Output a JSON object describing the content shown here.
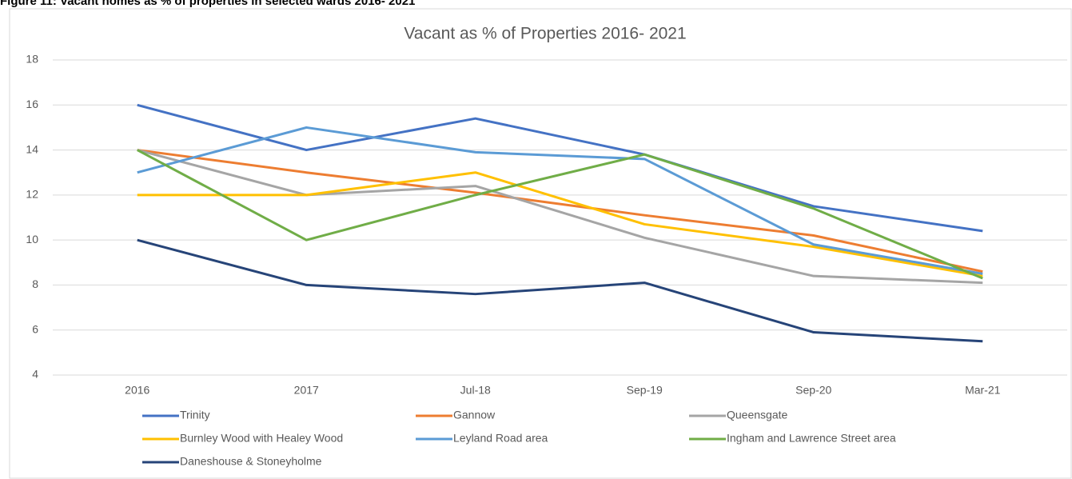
{
  "caption": "Figure 11: Vacant homes as % of properties in selected wards 2016- 2021",
  "chart_data": {
    "type": "line",
    "title": "Vacant as % of Properties 2016- 2021",
    "categories": [
      "2016",
      "2017",
      "Jul-18",
      "Sep-19",
      "Sep-20",
      "Mar-21"
    ],
    "ylim": [
      4,
      18
    ],
    "yticks": [
      4,
      6,
      8,
      10,
      12,
      14,
      16,
      18
    ],
    "grid": true,
    "legend": "bottom",
    "series": [
      {
        "name": "Trinity",
        "color": "#4472c4",
        "values": [
          16,
          14,
          15.4,
          13.8,
          11.5,
          10.4
        ]
      },
      {
        "name": "Gannow",
        "color": "#ed7d31",
        "values": [
          14,
          13,
          12.1,
          11.1,
          10.2,
          8.6
        ]
      },
      {
        "name": "Queensgate",
        "color": "#a5a5a5",
        "values": [
          14,
          12,
          12.4,
          10.1,
          8.4,
          8.1
        ]
      },
      {
        "name": "Burnley Wood with Healey Wood",
        "color": "#ffc000",
        "values": [
          12,
          12,
          13,
          10.7,
          9.7,
          8.4
        ]
      },
      {
        "name": "Leyland Road area",
        "color": "#5b9bd5",
        "values": [
          13,
          15,
          13.9,
          13.6,
          9.8,
          8.5
        ]
      },
      {
        "name": "Ingham and Lawrence Street area",
        "color": "#70ad47",
        "values": [
          14,
          10,
          12,
          13.8,
          11.4,
          8.3
        ]
      },
      {
        "name": "Daneshouse & Stoneyholme",
        "color": "#264478",
        "values": [
          10,
          8,
          7.6,
          8.1,
          5.9,
          5.5
        ]
      }
    ]
  }
}
